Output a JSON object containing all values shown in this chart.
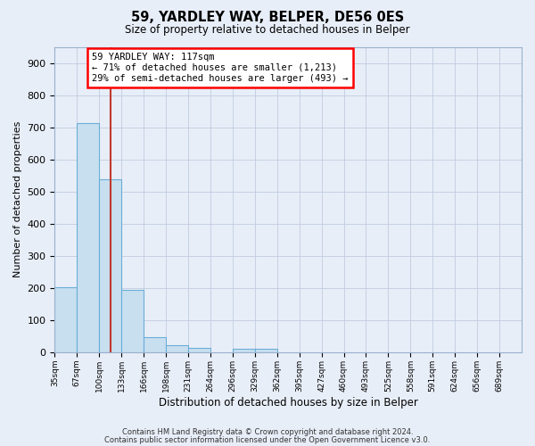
{
  "title": "59, YARDLEY WAY, BELPER, DE56 0ES",
  "subtitle": "Size of property relative to detached houses in Belper",
  "xlabel": "Distribution of detached houses by size in Belper",
  "ylabel": "Number of detached properties",
  "bin_labels": [
    "35sqm",
    "67sqm",
    "100sqm",
    "133sqm",
    "166sqm",
    "198sqm",
    "231sqm",
    "264sqm",
    "296sqm",
    "329sqm",
    "362sqm",
    "395sqm",
    "427sqm",
    "460sqm",
    "493sqm",
    "525sqm",
    "558sqm",
    "591sqm",
    "624sqm",
    "656sqm",
    "689sqm"
  ],
  "bar_values": [
    203,
    714,
    537,
    193,
    47,
    22,
    14,
    0,
    10,
    10,
    0,
    0,
    0,
    0,
    0,
    0,
    0,
    0,
    0,
    0,
    0
  ],
  "bar_color": "#c8dff0",
  "bar_edge_color": "#6aaed6",
  "property_line_color": "#c0392b",
  "annotation_title": "59 YARDLEY WAY: 117sqm",
  "annotation_line1": "← 71% of detached houses are smaller (1,213)",
  "annotation_line2": "29% of semi-detached houses are larger (493) →",
  "ylim": [
    0,
    950
  ],
  "yticks": [
    0,
    100,
    200,
    300,
    400,
    500,
    600,
    700,
    800,
    900
  ],
  "footer1": "Contains HM Land Registry data © Crown copyright and database right 2024.",
  "footer2": "Contains public sector information licensed under the Open Government Licence v3.0.",
  "bg_color": "#e8eef8",
  "plot_bg_color": "#e8eef8"
}
